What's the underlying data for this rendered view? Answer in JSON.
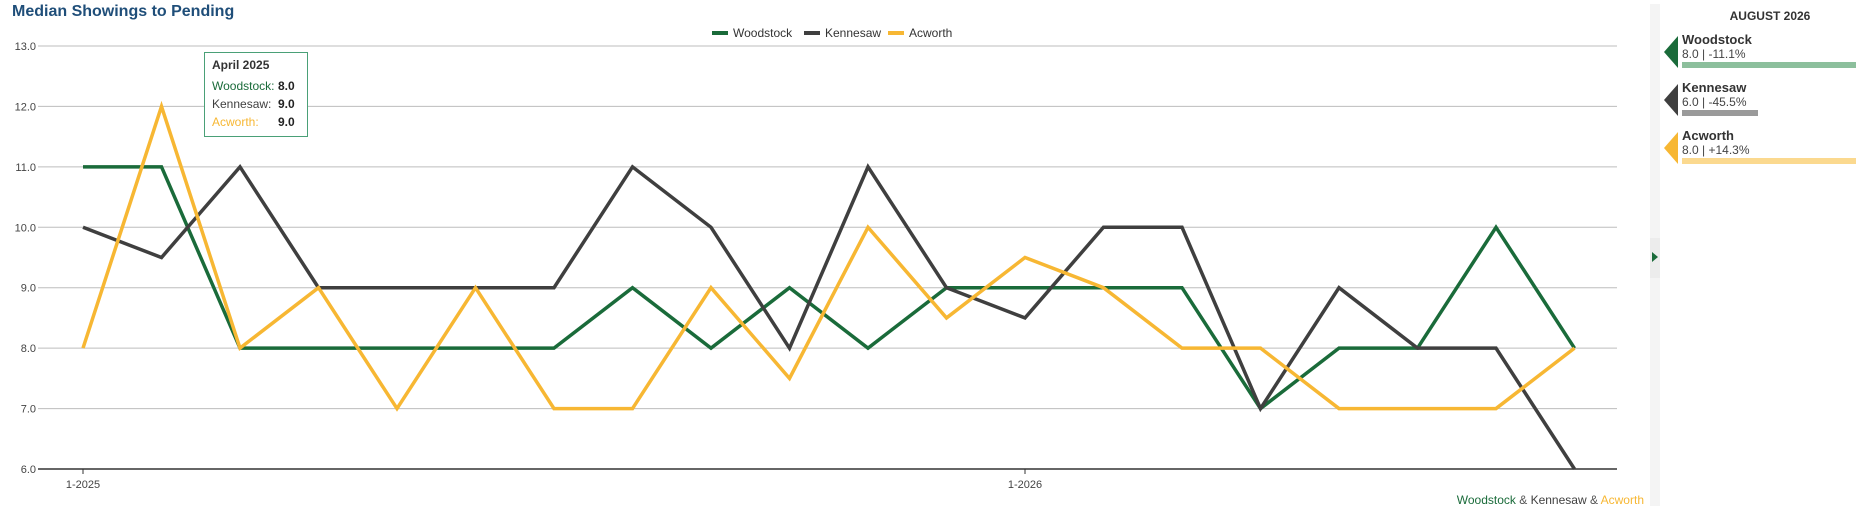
{
  "title": "Median Showings to Pending",
  "colors": {
    "Woodstock": "#1a6b3a",
    "Kennesaw": "#3f3f3f",
    "Acworth": "#f7b733"
  },
  "chart_data": {
    "type": "line",
    "title": "Median Showings to Pending",
    "x": [
      "1-2025",
      "2-2025",
      "3-2025",
      "4-2025",
      "5-2025",
      "6-2025",
      "7-2025",
      "8-2025",
      "9-2025",
      "10-2025",
      "11-2025",
      "12-2025",
      "1-2026",
      "2-2026",
      "3-2026",
      "4-2026",
      "5-2026",
      "6-2026",
      "7-2026",
      "8-2026"
    ],
    "x_tick_labels": [
      "1-2025",
      "1-2026"
    ],
    "ylim": [
      6.0,
      13.0
    ],
    "y_ticks": [
      "6.0",
      "7.0",
      "8.0",
      "9.0",
      "10.0",
      "11.0",
      "12.0",
      "13.0"
    ],
    "grid": true,
    "legend_placement": "top-center",
    "series": [
      {
        "name": "Woodstock",
        "color": "#1a6b3a",
        "values": [
          11,
          11,
          8,
          8,
          8,
          8,
          8,
          9,
          8,
          9,
          8,
          9,
          9,
          9,
          9,
          7,
          8,
          8,
          10,
          8
        ]
      },
      {
        "name": "Kennesaw",
        "color": "#3f3f3f",
        "values": [
          10,
          9.5,
          11,
          9,
          9,
          9,
          9,
          11,
          10,
          8,
          11,
          9,
          8.5,
          10,
          10,
          7,
          9,
          8,
          8,
          6
        ]
      },
      {
        "name": "Acworth",
        "color": "#f7b733",
        "values": [
          8,
          12,
          8,
          9,
          7,
          9,
          7,
          7,
          9,
          7.5,
          10,
          8.5,
          9.5,
          9,
          8,
          8,
          7,
          7,
          7,
          8
        ]
      }
    ]
  },
  "tooltip": {
    "title": "April 2025",
    "rows": [
      {
        "label": "Woodstock:",
        "value": "8.0",
        "color": "#1a6b3a"
      },
      {
        "label": "Kennesaw:",
        "value": "9.0",
        "color": "#3f3f3f"
      },
      {
        "label": "Acworth:",
        "value": "9.0",
        "color": "#f7b733"
      }
    ]
  },
  "footer_legend": {
    "a": "Woodstock",
    "sep1": " & ",
    "b": "Kennesaw",
    "sep2": " & ",
    "c": "Acworth"
  },
  "panel": {
    "header": "AUGUST 2026",
    "cards": [
      {
        "name": "Woodstock",
        "value": "8.0 | -11.1%",
        "color": "#1a6b3a",
        "bar_color": "#8cbf9c",
        "bar_fraction": 1.0
      },
      {
        "name": "Kennesaw",
        "value": "6.0 | -45.5%",
        "color": "#3f3f3f",
        "bar_color": "#9a9a9a",
        "bar_fraction": 0.435
      },
      {
        "name": "Acworth",
        "value": "8.0 | +14.3%",
        "color": "#f7b733",
        "bar_color": "#fbd98f",
        "bar_fraction": 1.0
      }
    ]
  }
}
